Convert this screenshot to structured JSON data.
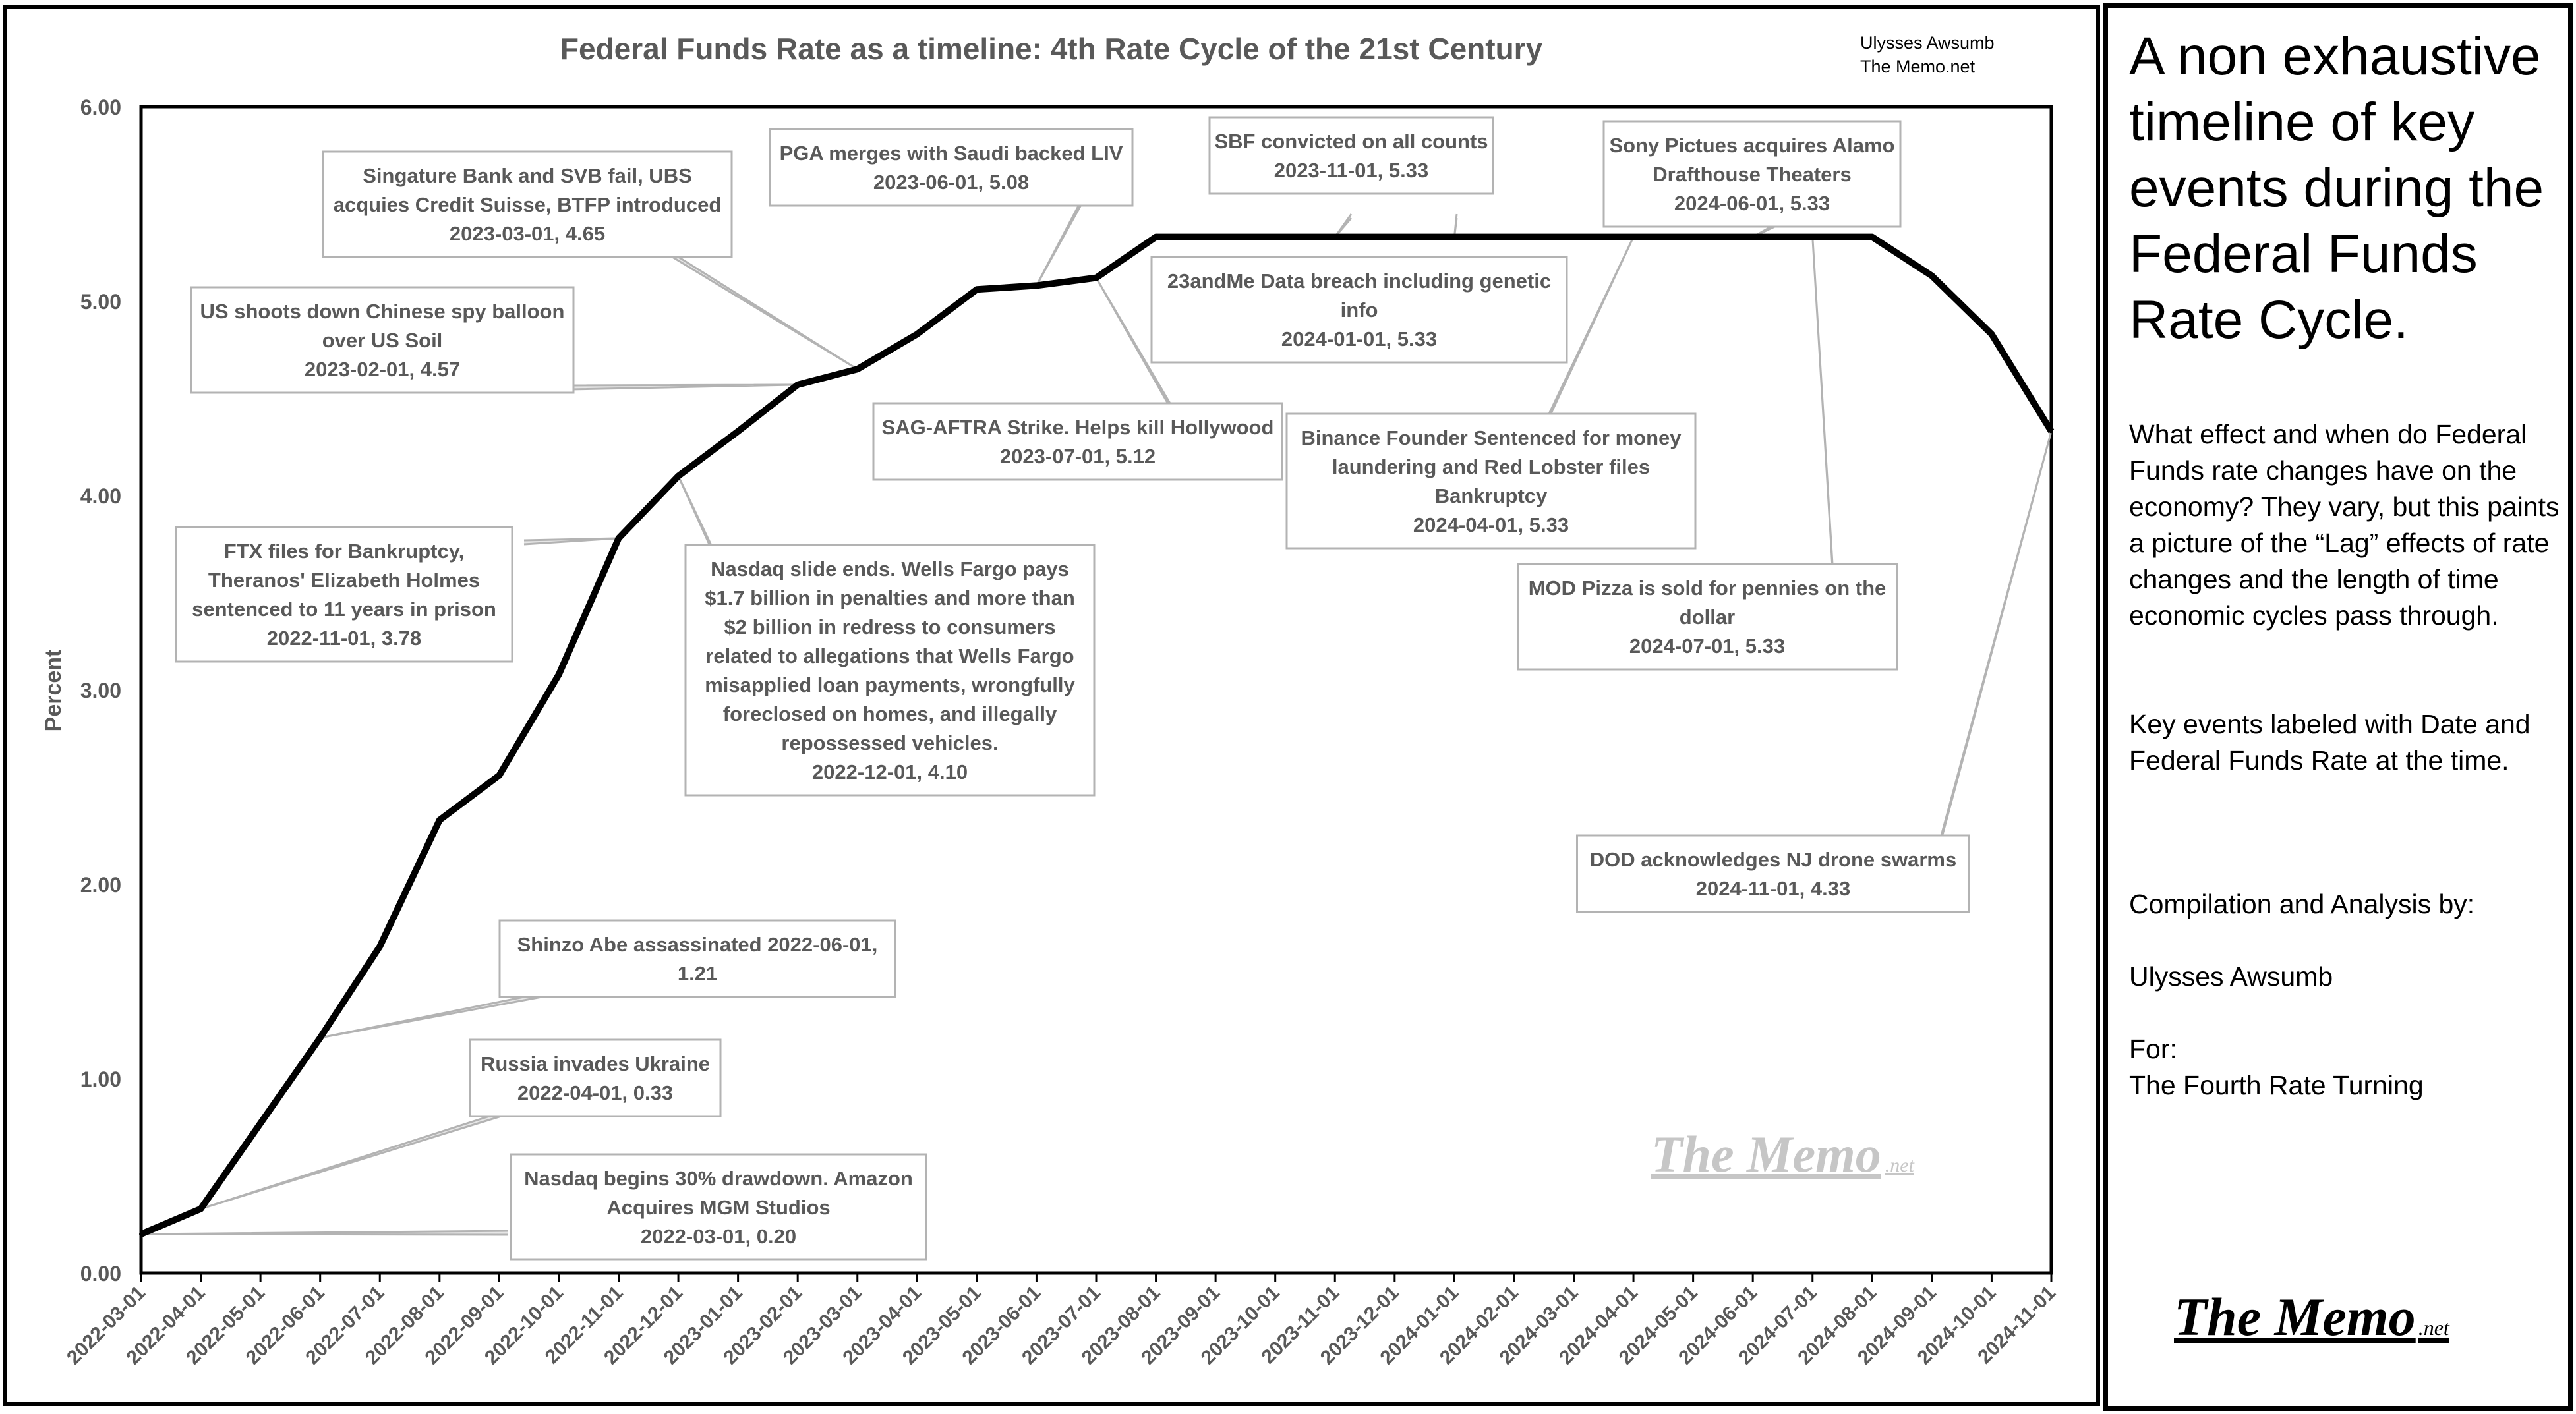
{
  "chart_data": {
    "type": "line",
    "title": "Federal Funds Rate as a timeline: 4th Rate Cycle of the 21st Century",
    "ylabel": "Percent",
    "xlabel": "",
    "ylim": [
      0,
      6
    ],
    "yticks": [
      "0.00",
      "1.00",
      "2.00",
      "3.00",
      "4.00",
      "5.00",
      "6.00"
    ],
    "grid": false,
    "categories": [
      "2022-03-01",
      "2022-04-01",
      "2022-05-01",
      "2022-06-01",
      "2022-07-01",
      "2022-08-01",
      "2022-09-01",
      "2022-10-01",
      "2022-11-01",
      "2022-12-01",
      "2023-01-01",
      "2023-02-01",
      "2023-03-01",
      "2023-04-01",
      "2023-05-01",
      "2023-06-01",
      "2023-07-01",
      "2023-08-01",
      "2023-09-01",
      "2023-10-01",
      "2023-11-01",
      "2023-12-01",
      "2024-01-01",
      "2024-02-01",
      "2024-03-01",
      "2024-04-01",
      "2024-05-01",
      "2024-06-01",
      "2024-07-01",
      "2024-08-01",
      "2024-09-01",
      "2024-10-01",
      "2024-11-01"
    ],
    "values": [
      0.2,
      0.33,
      0.77,
      1.21,
      1.68,
      2.33,
      2.56,
      3.08,
      3.78,
      4.1,
      4.33,
      4.57,
      4.65,
      4.83,
      5.06,
      5.08,
      5.12,
      5.33,
      5.33,
      5.33,
      5.33,
      5.33,
      5.33,
      5.33,
      5.33,
      5.33,
      5.33,
      5.33,
      5.33,
      5.33,
      5.13,
      4.83,
      4.33
    ],
    "credit_lines": [
      "Ulysses Awsumb",
      "The Memo.net"
    ],
    "watermark": {
      "main": "The Memo",
      "suffix": ".net"
    },
    "annotations": [
      {
        "lines": [
          "Nasdaq begins 30% drawdown. Amazon",
          "Acquires MGM Studios",
          "2022-03-01, 0.20"
        ],
        "target": "2022-03-01"
      },
      {
        "lines": [
          "Russia invades Ukraine",
          "2022-04-01, 0.33"
        ],
        "target": "2022-04-01"
      },
      {
        "lines": [
          "Shinzo Abe assassinated 2022-06-01,",
          "1.21"
        ],
        "target": "2022-06-01"
      },
      {
        "lines": [
          "FTX files for Bankruptcy,",
          "Theranos' Elizabeth Holmes",
          "sentenced to 11 years in prison",
          "2022-11-01, 3.78"
        ],
        "target": "2022-11-01"
      },
      {
        "lines": [
          "Nasdaq slide ends. Wells Fargo pays",
          "$1.7 billion in  penalties and more than",
          "$2 billion in redress to consumers",
          "related to allegations that Wells Fargo",
          "misapplied loan payments, wrongfully",
          "foreclosed on homes, and illegally",
          "repossessed vehicles.",
          "2022-12-01, 4.10"
        ],
        "target": "2022-12-01"
      },
      {
        "lines": [
          "US shoots down Chinese spy balloon",
          "over US Soil",
          "2023-02-01, 4.57"
        ],
        "target": "2023-02-01"
      },
      {
        "lines": [
          "Singature Bank and SVB fail, UBS",
          "acquies Credit Suisse, BTFP introduced",
          "2023-03-01, 4.65"
        ],
        "target": "2023-03-01"
      },
      {
        "lines": [
          "PGA merges with Saudi backed LIV",
          "2023-06-01, 5.08"
        ],
        "target": "2023-06-01"
      },
      {
        "lines": [
          "SAG-AFTRA Strike. Helps kill Hollywood",
          "2023-07-01, 5.12"
        ],
        "target": "2023-07-01"
      },
      {
        "lines": [
          "SBF convicted on all counts",
          "2023-11-01, 5.33"
        ],
        "target": "2023-11-01"
      },
      {
        "lines": [
          "23andMe Data breach including genetic",
          "info",
          "2024-01-01, 5.33"
        ],
        "target": "2024-01-01"
      },
      {
        "lines": [
          "Binance Founder Sentenced for money",
          "laundering and Red Lobster files",
          "Bankruptcy",
          "2024-04-01, 5.33"
        ],
        "target": "2024-04-01"
      },
      {
        "lines": [
          "Sony Pictues acquires Alamo",
          "Drafthouse Theaters",
          "2024-06-01, 5.33"
        ],
        "target": "2024-06-01"
      },
      {
        "lines": [
          "MOD Pizza is sold for pennies on the",
          "dollar",
          "2024-07-01, 5.33"
        ],
        "target": "2024-07-01"
      },
      {
        "lines": [
          "DOD acknowledges NJ drone swarms",
          "2024-11-01, 4.33"
        ],
        "target": "2024-11-01"
      }
    ]
  },
  "side_panel": {
    "heading": "A non exhaustive timeline of key events during the Federal Funds Rate Cycle.",
    "paragraph1": "What effect and when do Federal Funds rate changes have on the economy? They vary, but this paints a picture of the “Lag” effects of rate changes and the length of time economic cycles pass through.",
    "paragraph2": "Key events labeled with Date and Federal Funds Rate at the time.",
    "compilation_label": "Compilation and Analysis by:",
    "author": "Ulysses Awsumb",
    "for_label": "For:",
    "for_value": "The Fourth Rate Turning",
    "logo_main": "The Memo",
    "logo_suffix": ".net"
  }
}
